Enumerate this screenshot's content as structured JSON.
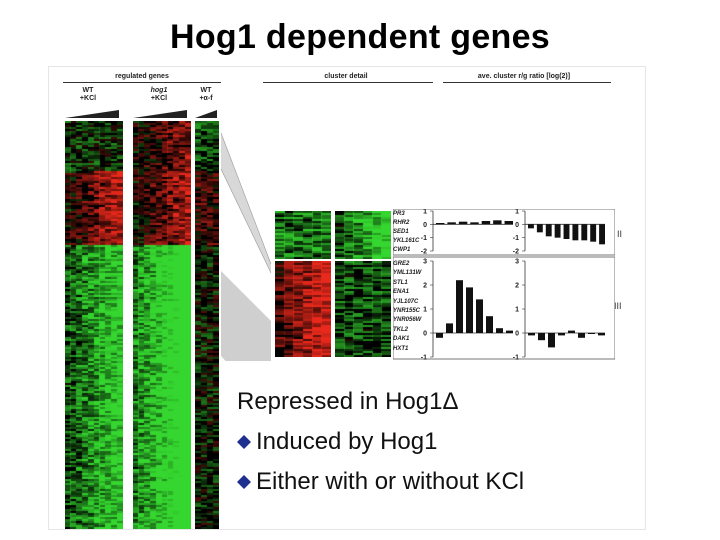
{
  "title": "Hog1 dependent genes",
  "figure": {
    "headers": {
      "regulated": "regulated genes",
      "cluster_detail": "cluster detail",
      "ratio": "ave. cluster r/g ratio [log(2)]"
    },
    "columns": [
      {
        "line1": "WT",
        "line2": "+KCl",
        "marker": "2"
      },
      {
        "line1": "hog1",
        "line2": "+KCl",
        "marker": "2"
      },
      {
        "line1": "WT",
        "line2": "+α-f",
        "marker": "2"
      }
    ],
    "genes_II": [
      "PR3",
      "RHR2",
      "SED1",
      "YKL161C",
      "CWP1"
    ],
    "genes_III": [
      "GRE2",
      "YML131W",
      "STL1",
      "ENA1",
      "YJL107C",
      "YNR155C",
      "YNR056W",
      "TKL2",
      "DAK1",
      "HXT1"
    ],
    "cluster_labels": [
      "II",
      "III"
    ],
    "chart_data": [
      {
        "type": "bar",
        "title": "",
        "yticks": [
          "1",
          "0",
          "-1",
          "-2"
        ],
        "ylim": [
          -2,
          1
        ],
        "values": [
          0.1,
          0.15,
          0.2,
          0.15,
          0.25,
          0.3,
          0.25
        ]
      },
      {
        "type": "bar",
        "title": "",
        "yticks": [
          "1",
          "0",
          "-1",
          "-2"
        ],
        "ylim": [
          -2,
          1
        ],
        "values": [
          -0.3,
          -0.6,
          -0.9,
          -1.0,
          -1.1,
          -1.2,
          -1.2,
          -1.3,
          -1.5
        ]
      },
      {
        "type": "bar",
        "title": "",
        "yticks": [
          "3",
          "2",
          "1",
          "0",
          "-1"
        ],
        "ylim": [
          -1,
          3
        ],
        "values": [
          -0.2,
          0.4,
          2.2,
          1.9,
          1.4,
          0.7,
          0.2,
          0.1
        ]
      },
      {
        "type": "bar",
        "title": "",
        "yticks": [
          "3",
          "2",
          "1",
          "0",
          "-1"
        ],
        "ylim": [
          -1,
          3
        ],
        "values": [
          -0.1,
          -0.3,
          -0.6,
          -0.1,
          0.1,
          -0.2,
          0.0,
          -0.1
        ]
      }
    ]
  },
  "caption": {
    "line1": "Repressed in Hog1Δ",
    "bullets": [
      "Induced by Hog1",
      "Either with or without KCl"
    ]
  },
  "colors": {
    "red": "#e8291c",
    "green": "#35d62f",
    "bullet": "#1f2f8f"
  }
}
